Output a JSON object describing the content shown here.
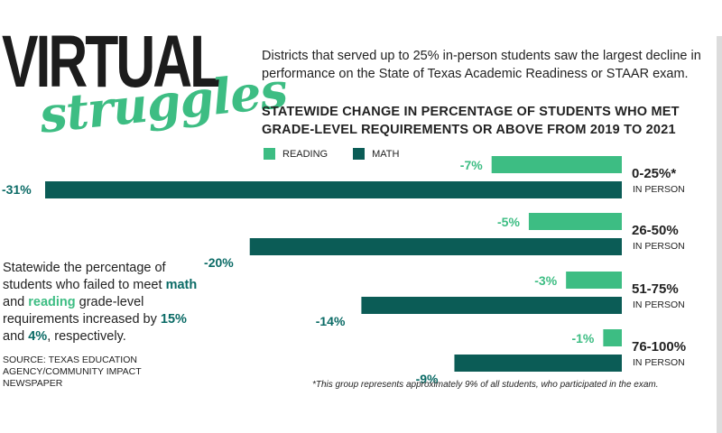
{
  "header": {
    "title_main": "VIRTUAL",
    "title_script": "struggles",
    "intro": "Districts that served up to 25% in-person students saw the largest decline in performance on the State of Texas Academic Readiness or STAAR exam."
  },
  "legend": {
    "reading_label": "READING",
    "math_label": "MATH"
  },
  "colors": {
    "reading": "#3dbd83",
    "math": "#0b5c56",
    "math_label_text": "#0b6b66"
  },
  "statement": {
    "part1": "Statewide the percentage of students who failed to meet ",
    "math_word": "math",
    "part2": " and ",
    "reading_word": "reading",
    "part3": " grade-level requirements increased by ",
    "math_pct": "15%",
    "part4": " and ",
    "reading_pct": "4%",
    "part5": ", respectively."
  },
  "source": "SOURCE: TEXAS EDUCATION AGENCY/COMMUNITY IMPACT NEWSPAPER",
  "footnote": "*This group represents approximately 9% of all students, who participated in the exam.",
  "chart_data": {
    "type": "bar",
    "orientation": "horizontal",
    "title": "STATEWIDE CHANGE IN PERCENTAGE OF STUDENTS WHO MET GRADE-LEVEL REQUIREMENTS OR ABOVE FROM 2019 TO 2021",
    "categories": [
      "0-25%*",
      "26-50%",
      "51-75%",
      "76-100%"
    ],
    "category_sublabel": "IN PERSON",
    "series": [
      {
        "name": "READING",
        "values": [
          -7,
          -5,
          -3,
          -1
        ],
        "labels": [
          "-7%",
          "-5%",
          "-3%",
          "-1%"
        ]
      },
      {
        "name": "MATH",
        "values": [
          -31,
          -20,
          -14,
          -9
        ],
        "labels": [
          "-31%",
          "-20%",
          "-14%",
          "-9%"
        ]
      }
    ],
    "xlim": [
      -31,
      0
    ],
    "legend_position": "top",
    "grid": false
  }
}
